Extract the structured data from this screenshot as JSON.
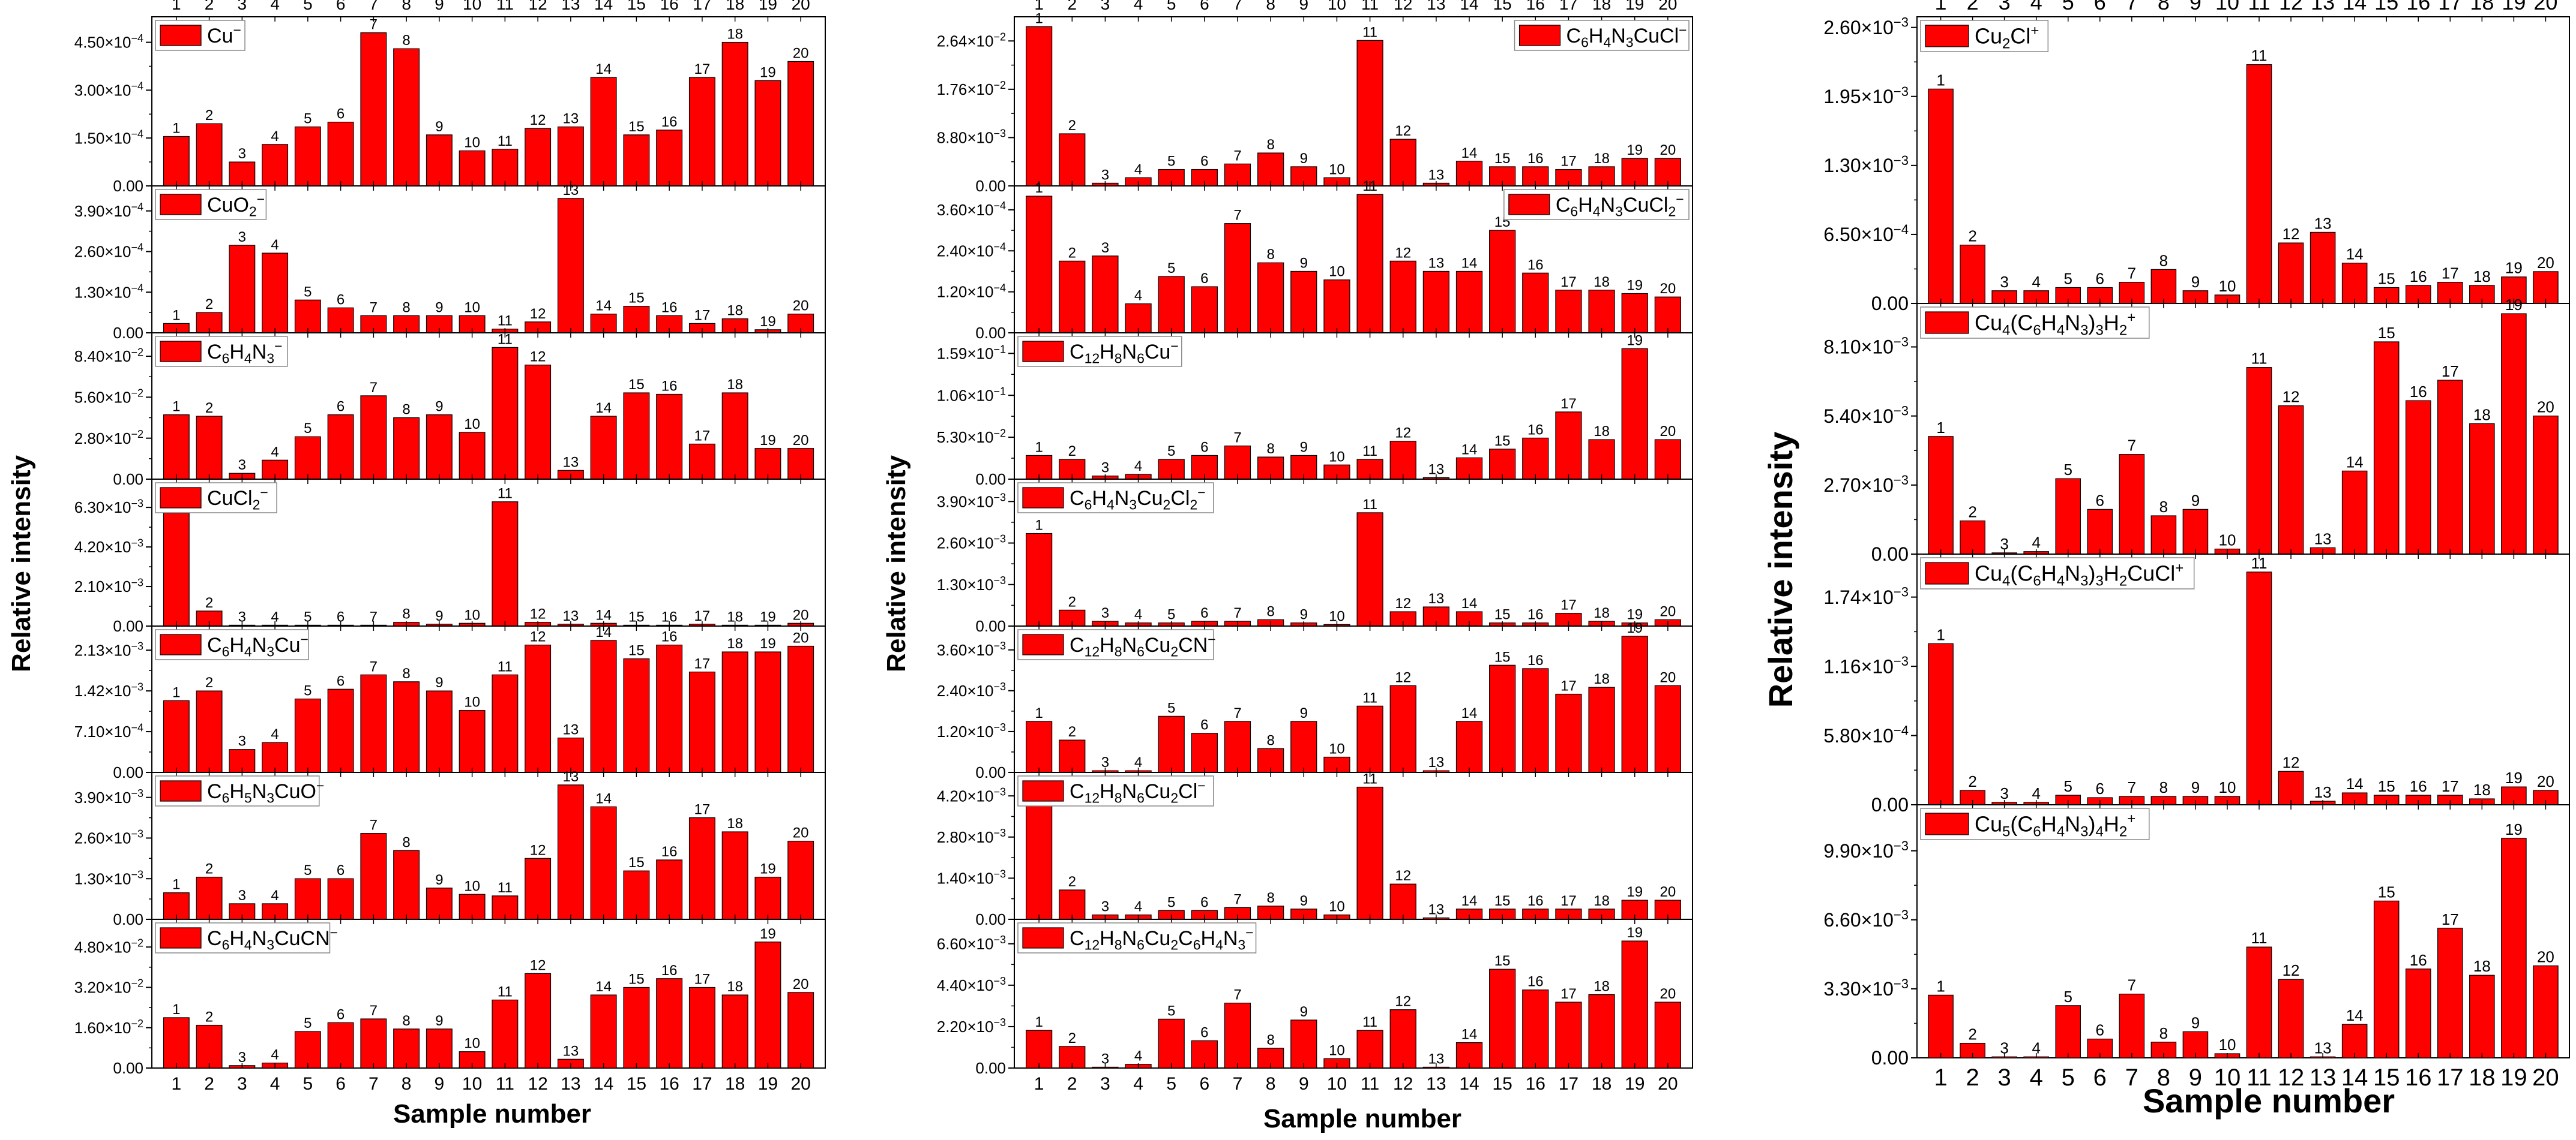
{
  "xlabel": "Sample number",
  "ylabel": "Relative intensity",
  "bar_color": "#ff0000",
  "chart_data": [
    {
      "id": "a1",
      "type": "bar",
      "legend": "Cu^{−}",
      "categories": [
        "1",
        "2",
        "3",
        "4",
        "5",
        "6",
        "7",
        "8",
        "9",
        "10",
        "11",
        "12",
        "13",
        "14",
        "15",
        "16",
        "17",
        "18",
        "19",
        "20"
      ],
      "yticks": [
        {
          "v": 0,
          "label": "0.00"
        },
        {
          "v": 1.5,
          "label": "1.50×10^{−4}"
        },
        {
          "v": 3.0,
          "label": "3.00×10^{−4}"
        },
        {
          "v": 4.5,
          "label": "4.50×10^{−4}"
        }
      ],
      "ylim": [
        0,
        5.3
      ],
      "values": [
        1.55,
        1.95,
        0.75,
        1.3,
        1.85,
        2.0,
        4.8,
        4.3,
        1.6,
        1.1,
        1.15,
        1.8,
        1.85,
        3.4,
        1.6,
        1.75,
        3.4,
        4.5,
        3.3,
        3.9
      ]
    },
    {
      "id": "a2",
      "type": "bar",
      "legend": "CuO_{2}^{−}",
      "categories": [
        "1",
        "2",
        "3",
        "4",
        "5",
        "6",
        "7",
        "8",
        "9",
        "10",
        "11",
        "12",
        "13",
        "14",
        "15",
        "16",
        "17",
        "18",
        "19",
        "20"
      ],
      "yticks": [
        {
          "v": 0,
          "label": "0.00"
        },
        {
          "v": 1.3,
          "label": "1.30×10^{−4}"
        },
        {
          "v": 2.6,
          "label": "2.60×10^{−4}"
        },
        {
          "v": 3.9,
          "label": "3.90×10^{−4}"
        }
      ],
      "ylim": [
        0,
        4.7
      ],
      "values": [
        0.3,
        0.65,
        2.8,
        2.55,
        1.05,
        0.8,
        0.55,
        0.55,
        0.55,
        0.55,
        0.12,
        0.35,
        4.3,
        0.6,
        0.85,
        0.55,
        0.3,
        0.45,
        0.1,
        0.6
      ]
    },
    {
      "id": "a3",
      "type": "bar",
      "legend": "C_{6}H_{4}N_{3}^{−}",
      "categories": [
        "1",
        "2",
        "3",
        "4",
        "5",
        "6",
        "7",
        "8",
        "9",
        "10",
        "11",
        "12",
        "13",
        "14",
        "15",
        "16",
        "17",
        "18",
        "19",
        "20"
      ],
      "yticks": [
        {
          "v": 0,
          "label": "0.00"
        },
        {
          "v": 2.8,
          "label": "2.80×10^{−2}"
        },
        {
          "v": 5.6,
          "label": "5.60×10^{−2}"
        },
        {
          "v": 8.4,
          "label": "8.40×10^{−2}"
        }
      ],
      "ylim": [
        0,
        10
      ],
      "values": [
        4.4,
        4.3,
        0.4,
        1.3,
        2.9,
        4.4,
        5.7,
        4.2,
        4.4,
        3.2,
        9.0,
        7.8,
        0.6,
        4.3,
        5.9,
        5.8,
        2.4,
        5.9,
        2.1,
        2.1
      ]
    },
    {
      "id": "a4",
      "type": "bar",
      "legend": "CuCl_{2}^{−}",
      "categories": [
        "1",
        "2",
        "3",
        "4",
        "5",
        "6",
        "7",
        "8",
        "9",
        "10",
        "11",
        "12",
        "13",
        "14",
        "15",
        "16",
        "17",
        "18",
        "19",
        "20"
      ],
      "yticks": [
        {
          "v": 0,
          "label": "0.00"
        },
        {
          "v": 2.1,
          "label": "2.10×10^{−3}"
        },
        {
          "v": 4.2,
          "label": "4.20×10^{−3}"
        },
        {
          "v": 6.3,
          "label": "6.30×10^{−3}"
        }
      ],
      "ylim": [
        0,
        7.8
      ],
      "values": [
        6.0,
        0.8,
        0.05,
        0.05,
        0.05,
        0.05,
        0.05,
        0.2,
        0.1,
        0.15,
        6.6,
        0.2,
        0.1,
        0.15,
        0.05,
        0.05,
        0.1,
        0.05,
        0.05,
        0.15
      ]
    },
    {
      "id": "a5",
      "type": "bar",
      "legend": "C_{6}H_{4}N_{3}Cu^{−}",
      "categories": [
        "1",
        "2",
        "3",
        "4",
        "5",
        "6",
        "7",
        "8",
        "9",
        "10",
        "11",
        "12",
        "13",
        "14",
        "15",
        "16",
        "17",
        "18",
        "19",
        "20"
      ],
      "yticks": [
        {
          "v": 0,
          "label": "0.00"
        },
        {
          "v": 0.71,
          "label": "7.10×10^{−4}"
        },
        {
          "v": 1.42,
          "label": "1.42×10^{−3}"
        },
        {
          "v": 2.13,
          "label": "2.13×10^{−3}"
        }
      ],
      "ylim": [
        0,
        2.55
      ],
      "values": [
        1.25,
        1.42,
        0.4,
        0.52,
        1.28,
        1.45,
        1.7,
        1.58,
        1.42,
        1.08,
        1.7,
        2.22,
        0.6,
        2.3,
        1.98,
        2.22,
        1.75,
        2.1,
        2.1,
        2.2
      ]
    },
    {
      "id": "a6",
      "type": "bar",
      "legend": "C_{6}H_{5}N_{3}CuO^{−}",
      "categories": [
        "1",
        "2",
        "3",
        "4",
        "5",
        "6",
        "7",
        "8",
        "9",
        "10",
        "11",
        "12",
        "13",
        "14",
        "15",
        "16",
        "17",
        "18",
        "19",
        "20"
      ],
      "yticks": [
        {
          "v": 0,
          "label": "0.00"
        },
        {
          "v": 1.3,
          "label": "1.30×10^{−3}"
        },
        {
          "v": 2.6,
          "label": "2.60×10^{−3}"
        },
        {
          "v": 3.9,
          "label": "3.90×10^{−3}"
        }
      ],
      "ylim": [
        0,
        4.7
      ],
      "values": [
        0.85,
        1.35,
        0.5,
        0.5,
        1.3,
        1.3,
        2.75,
        2.2,
        1.0,
        0.8,
        0.75,
        1.95,
        4.3,
        3.6,
        1.55,
        1.9,
        3.25,
        2.8,
        1.35,
        2.5
      ]
    },
    {
      "id": "a7",
      "type": "bar",
      "legend": "C_{6}H_{4}N_{3}CuCN^{−}",
      "categories": [
        "1",
        "2",
        "3",
        "4",
        "5",
        "6",
        "7",
        "8",
        "9",
        "10",
        "11",
        "12",
        "13",
        "14",
        "15",
        "16",
        "17",
        "18",
        "19",
        "20"
      ],
      "yticks": [
        {
          "v": 0,
          "label": "0.00"
        },
        {
          "v": 1.6,
          "label": "1.60×10^{−2}"
        },
        {
          "v": 3.2,
          "label": "3.20×10^{−2}"
        },
        {
          "v": 4.8,
          "label": "4.80×10^{−2}"
        }
      ],
      "ylim": [
        0,
        5.9
      ],
      "values": [
        2.0,
        1.7,
        0.1,
        0.2,
        1.45,
        1.8,
        1.95,
        1.55,
        1.55,
        0.65,
        2.7,
        3.75,
        0.35,
        2.9,
        3.2,
        3.55,
        3.2,
        2.9,
        5.0,
        3.0
      ]
    },
    {
      "id": "b1",
      "type": "bar",
      "legend": "C_{6}H_{4}N_{3}CuCl^{−}",
      "categories": [
        "1",
        "2",
        "3",
        "4",
        "5",
        "6",
        "7",
        "8",
        "9",
        "10",
        "11",
        "12",
        "13",
        "14",
        "15",
        "16",
        "17",
        "18",
        "19",
        "20"
      ],
      "yticks": [
        {
          "v": 0,
          "label": "0.00"
        },
        {
          "v": 0.88,
          "label": "8.80×10^{−3}"
        },
        {
          "v": 1.76,
          "label": "1.76×10^{−2}"
        },
        {
          "v": 2.64,
          "label": "2.64×10^{−2}"
        }
      ],
      "ylim": [
        0,
        3.08
      ],
      "values": [
        2.9,
        0.95,
        0.05,
        0.15,
        0.3,
        0.3,
        0.4,
        0.6,
        0.35,
        0.15,
        2.65,
        0.85,
        0.05,
        0.45,
        0.35,
        0.35,
        0.3,
        0.35,
        0.5,
        0.5
      ]
    },
    {
      "id": "b2",
      "type": "bar",
      "legend": "C_{6}H_{4}N_{3}CuCl_{2}^{−}",
      "categories": [
        "1",
        "2",
        "3",
        "4",
        "5",
        "6",
        "7",
        "8",
        "9",
        "10",
        "11",
        "12",
        "13",
        "14",
        "15",
        "16",
        "17",
        "18",
        "19",
        "20"
      ],
      "yticks": [
        {
          "v": 0,
          "label": "0.00"
        },
        {
          "v": 1.2,
          "label": "1.20×10^{−4}"
        },
        {
          "v": 2.4,
          "label": "2.40×10^{−4}"
        },
        {
          "v": 3.6,
          "label": "3.60×10^{−4}"
        }
      ],
      "ylim": [
        0,
        4.3
      ],
      "values": [
        4.0,
        2.1,
        2.25,
        0.85,
        1.65,
        1.35,
        3.2,
        2.05,
        1.8,
        1.55,
        4.05,
        2.1,
        1.8,
        1.8,
        3.0,
        1.75,
        1.25,
        1.25,
        1.15,
        1.05
      ]
    },
    {
      "id": "b3",
      "type": "bar",
      "legend": "C_{12}H_{8}N_{6}Cu^{−}",
      "categories": [
        "1",
        "2",
        "3",
        "4",
        "5",
        "6",
        "7",
        "8",
        "9",
        "10",
        "11",
        "12",
        "13",
        "14",
        "15",
        "16",
        "17",
        "18",
        "19",
        "20"
      ],
      "yticks": [
        {
          "v": 0,
          "label": "0.00"
        },
        {
          "v": 0.53,
          "label": "5.30×10^{−2}"
        },
        {
          "v": 1.06,
          "label": "1.06×10^{−1}"
        },
        {
          "v": 1.59,
          "label": "1.59×10^{−1}"
        }
      ],
      "ylim": [
        0,
        1.85
      ],
      "values": [
        0.3,
        0.25,
        0.04,
        0.06,
        0.25,
        0.3,
        0.42,
        0.28,
        0.3,
        0.18,
        0.25,
        0.48,
        0.02,
        0.27,
        0.38,
        0.52,
        0.85,
        0.5,
        1.65,
        0.5
      ]
    },
    {
      "id": "b4",
      "type": "bar",
      "legend": "C_{6}H_{4}N_{3}Cu_{2}Cl_{2}^{−}",
      "categories": [
        "1",
        "2",
        "3",
        "4",
        "5",
        "6",
        "7",
        "8",
        "9",
        "10",
        "11",
        "12",
        "13",
        "14",
        "15",
        "16",
        "17",
        "18",
        "19",
        "20"
      ],
      "yticks": [
        {
          "v": 0,
          "label": "0.00"
        },
        {
          "v": 1.3,
          "label": "1.30×10^{−3}"
        },
        {
          "v": 2.6,
          "label": "2.60×10^{−3}"
        },
        {
          "v": 3.9,
          "label": "3.90×10^{−3}"
        }
      ],
      "ylim": [
        0,
        4.6
      ],
      "values": [
        2.9,
        0.5,
        0.15,
        0.1,
        0.1,
        0.15,
        0.15,
        0.2,
        0.1,
        0.05,
        3.55,
        0.45,
        0.6,
        0.45,
        0.1,
        0.1,
        0.4,
        0.15,
        0.1,
        0.2
      ]
    },
    {
      "id": "b5",
      "type": "bar",
      "legend": "C_{12}H_{8}N_{6}Cu_{2}CN^{−}",
      "categories": [
        "1",
        "2",
        "3",
        "4",
        "5",
        "6",
        "7",
        "8",
        "9",
        "10",
        "11",
        "12",
        "13",
        "14",
        "15",
        "16",
        "17",
        "18",
        "19",
        "20"
      ],
      "yticks": [
        {
          "v": 0,
          "label": "0.00"
        },
        {
          "v": 1.2,
          "label": "1.20×10^{−3}"
        },
        {
          "v": 2.4,
          "label": "2.40×10^{−3}"
        },
        {
          "v": 3.6,
          "label": "3.60×10^{−3}"
        }
      ],
      "ylim": [
        0,
        4.3
      ],
      "values": [
        1.5,
        0.95,
        0.05,
        0.05,
        1.65,
        1.15,
        1.5,
        0.7,
        1.5,
        0.45,
        1.95,
        2.55,
        0.05,
        1.5,
        3.15,
        3.05,
        2.3,
        2.5,
        4.0,
        2.55
      ]
    },
    {
      "id": "b6",
      "type": "bar",
      "legend": "C_{12}H_{8}N_{6}Cu_{2}Cl^{−}",
      "categories": [
        "1",
        "2",
        "3",
        "4",
        "5",
        "6",
        "7",
        "8",
        "9",
        "10",
        "11",
        "12",
        "13",
        "14",
        "15",
        "16",
        "17",
        "18",
        "19",
        "20"
      ],
      "yticks": [
        {
          "v": 0,
          "label": "0.00"
        },
        {
          "v": 1.4,
          "label": "1.40×10^{−3}"
        },
        {
          "v": 2.8,
          "label": "2.80×10^{−3}"
        },
        {
          "v": 4.2,
          "label": "4.20×10^{−3}"
        }
      ],
      "ylim": [
        0,
        5.0
      ],
      "values": [
        4.15,
        1.0,
        0.15,
        0.15,
        0.3,
        0.3,
        0.4,
        0.45,
        0.35,
        0.15,
        4.5,
        1.2,
        0.05,
        0.35,
        0.35,
        0.35,
        0.35,
        0.35,
        0.65,
        0.65
      ]
    },
    {
      "id": "b7",
      "type": "bar",
      "legend": "C_{12}H_{8}N_{6}Cu_{2}C_{6}H_{4}N_{3}^{−}",
      "categories": [
        "1",
        "2",
        "3",
        "4",
        "5",
        "6",
        "7",
        "8",
        "9",
        "10",
        "11",
        "12",
        "13",
        "14",
        "15",
        "16",
        "17",
        "18",
        "19",
        "20"
      ],
      "yticks": [
        {
          "v": 0,
          "label": "0.00"
        },
        {
          "v": 2.2,
          "label": "2.20×10^{−3}"
        },
        {
          "v": 4.4,
          "label": "4.40×10^{−3}"
        },
        {
          "v": 6.6,
          "label": "6.60×10^{−3}"
        }
      ],
      "ylim": [
        0,
        7.9
      ],
      "values": [
        2.0,
        1.15,
        0.05,
        0.2,
        2.6,
        1.45,
        3.45,
        1.05,
        2.55,
        0.5,
        2.0,
        3.1,
        0.05,
        1.35,
        5.25,
        4.15,
        3.5,
        3.9,
        6.75,
        3.5
      ]
    },
    {
      "id": "c1",
      "type": "bar",
      "legend": "Cu_{2}Cl^{+}",
      "categories": [
        "1",
        "2",
        "3",
        "4",
        "5",
        "6",
        "7",
        "8",
        "9",
        "10",
        "11",
        "12",
        "13",
        "14",
        "15",
        "16",
        "17",
        "18",
        "19",
        "20"
      ],
      "yticks": [
        {
          "v": 0,
          "label": "0.00"
        },
        {
          "v": 0.65,
          "label": "6.50×10^{−4}"
        },
        {
          "v": 1.3,
          "label": "1.30×10^{−3}"
        },
        {
          "v": 1.95,
          "label": "1.95×10^{−3}"
        },
        {
          "v": 2.6,
          "label": "2.60×10^{−3}"
        }
      ],
      "ylim": [
        0,
        2.7
      ],
      "values": [
        2.02,
        0.55,
        0.12,
        0.12,
        0.15,
        0.15,
        0.2,
        0.32,
        0.12,
        0.08,
        2.25,
        0.57,
        0.67,
        0.38,
        0.15,
        0.17,
        0.2,
        0.17,
        0.25,
        0.3
      ]
    },
    {
      "id": "c2",
      "type": "bar",
      "legend": "Cu_{4}(C_{6}H_{4}N_{3})_{3}H_{2}^{+}",
      "categories": [
        "1",
        "2",
        "3",
        "4",
        "5",
        "6",
        "7",
        "8",
        "9",
        "10",
        "11",
        "12",
        "13",
        "14",
        "15",
        "16",
        "17",
        "18",
        "19",
        "20"
      ],
      "yticks": [
        {
          "v": 0,
          "label": "0.00"
        },
        {
          "v": 2.7,
          "label": "2.70×10^{−3}"
        },
        {
          "v": 5.4,
          "label": "5.40×10^{−3}"
        },
        {
          "v": 8.1,
          "label": "8.10×10^{−3}"
        }
      ],
      "ylim": [
        0,
        9.8
      ],
      "values": [
        4.6,
        1.3,
        0.05,
        0.1,
        2.95,
        1.75,
        3.9,
        1.5,
        1.75,
        0.2,
        7.3,
        5.8,
        0.25,
        3.25,
        8.3,
        6.0,
        6.8,
        5.1,
        9.4,
        5.4
      ]
    },
    {
      "id": "c3",
      "type": "bar",
      "legend": "Cu_{4}(C_{6}H_{4}N_{3})_{3}H_{2}CuCl^{+}",
      "categories": [
        "1",
        "2",
        "3",
        "4",
        "5",
        "6",
        "7",
        "8",
        "9",
        "10",
        "11",
        "12",
        "13",
        "14",
        "15",
        "16",
        "17",
        "18",
        "19",
        "20"
      ],
      "yticks": [
        {
          "v": 0,
          "label": "0.00"
        },
        {
          "v": 0.58,
          "label": "5.80×10^{−4}"
        },
        {
          "v": 1.16,
          "label": "1.16×10^{−3}"
        },
        {
          "v": 1.74,
          "label": "1.74×10^{−3}"
        }
      ],
      "ylim": [
        0,
        2.1
      ],
      "values": [
        1.35,
        0.12,
        0.02,
        0.02,
        0.08,
        0.06,
        0.07,
        0.07,
        0.07,
        0.07,
        1.95,
        0.28,
        0.03,
        0.1,
        0.08,
        0.08,
        0.08,
        0.05,
        0.15,
        0.12
      ]
    },
    {
      "id": "c4",
      "type": "bar",
      "legend": "Cu_{5}(C_{6}H_{4}N_{3})_{4}H_{2}^{+}",
      "categories": [
        "1",
        "2",
        "3",
        "4",
        "5",
        "6",
        "7",
        "8",
        "9",
        "10",
        "11",
        "12",
        "13",
        "14",
        "15",
        "16",
        "17",
        "18",
        "19",
        "20"
      ],
      "yticks": [
        {
          "v": 0,
          "label": "0.00"
        },
        {
          "v": 3.3,
          "label": "3.30×10^{−3}"
        },
        {
          "v": 6.6,
          "label": "6.60×10^{−3}"
        },
        {
          "v": 9.9,
          "label": "9.90×10^{−3}"
        }
      ],
      "ylim": [
        0,
        12.1
      ],
      "values": [
        3.0,
        0.7,
        0.05,
        0.05,
        2.5,
        0.9,
        3.05,
        0.75,
        1.25,
        0.2,
        5.3,
        3.75,
        0.05,
        1.6,
        7.5,
        4.25,
        6.2,
        3.95,
        10.5,
        4.4
      ]
    }
  ]
}
